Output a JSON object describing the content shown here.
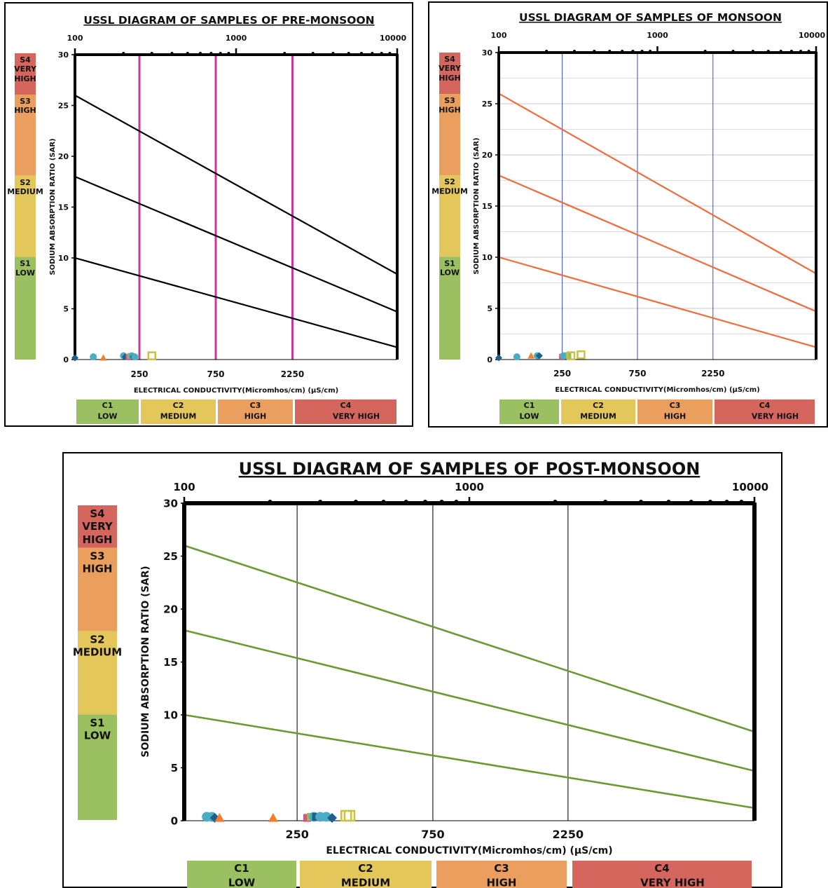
{
  "panels": [
    {
      "id": "pre",
      "title": "USSL DIAGRAM OF SAMPLES OF PRE-MONSOON",
      "ylabel": "SODIUM ABSORPTION RATIO (SAR)",
      "xlabel": "ELECTRICAL CONDUCTIVITY(Micromhos/cm) (µS/cm)",
      "top_ticks": [
        "100",
        "1000",
        "10000"
      ],
      "y_ticks": [
        "0",
        "5",
        "10",
        "15",
        "20",
        "25",
        "30"
      ],
      "bottom_ticks": [
        "250",
        "750",
        "2250"
      ],
      "s_classes": [
        {
          "code": "S4",
          "name": "VERY HIGH",
          "color": "#d4665e"
        },
        {
          "code": "S3",
          "name": "HIGH",
          "color": "#eb9f5f"
        },
        {
          "code": "S2",
          "name": "MEDIUM",
          "color": "#e3c75a"
        },
        {
          "code": "S1",
          "name": "LOW",
          "color": "#9bc062"
        }
      ],
      "c_classes": [
        {
          "code": "C1",
          "name": "LOW",
          "color": "#9bc062"
        },
        {
          "code": "C2",
          "name": "MEDIUM",
          "color": "#e3c75a"
        },
        {
          "code": "C3",
          "name": "HIGH",
          "color": "#eb9f5f"
        },
        {
          "code": "C4",
          "name": "VERY HIGH",
          "color": "#d4665e"
        }
      ],
      "line_color": "#000000",
      "divider_color": "#c8399e"
    },
    {
      "id": "mon",
      "title": "USSL DIAGRAM OF SAMPLES OF MONSOON",
      "ylabel": "SODIUM ABSORPTION RATIO (SAR)",
      "xlabel": "ELECTRICAL CONDUCTIVITY(Micromhos/cm) (µS/cm)",
      "top_ticks": [
        "100",
        "1000",
        "10000"
      ],
      "y_ticks": [
        "0",
        "5",
        "10",
        "15",
        "20",
        "25",
        "30"
      ],
      "bottom_ticks": [
        "250",
        "750",
        "2250"
      ],
      "s_classes": [
        {
          "code": "S4",
          "name": "VERY HIGH",
          "color": "#d4665e"
        },
        {
          "code": "S3",
          "name": "HIGH",
          "color": "#eb9f5f"
        },
        {
          "code": "S2",
          "name": "MEDIUM",
          "color": "#e3c75a"
        },
        {
          "code": "S1",
          "name": "LOW",
          "color": "#9bc062"
        }
      ],
      "c_classes": [
        {
          "code": "C1",
          "name": "LOW",
          "color": "#9bc062"
        },
        {
          "code": "C2",
          "name": "MEDIUM",
          "color": "#e3c75a"
        },
        {
          "code": "C3",
          "name": "HIGH",
          "color": "#eb9f5f"
        },
        {
          "code": "C4",
          "name": "VERY HIGH",
          "color": "#d4665e"
        }
      ],
      "line_color": "#f26b3a",
      "divider_color": "#3b48e0"
    },
    {
      "id": "post",
      "title": "USSL DIAGRAM OF SAMPLES OF POST-MONSOON",
      "ylabel": "SODIUM ABSORPTION RATIO (SAR)",
      "xlabel": "ELECTRICAL CONDUCTIVITY(Micromhos/cm) (µS/cm)",
      "top_ticks": [
        "100",
        "1000",
        "10000"
      ],
      "y_ticks": [
        "0",
        "5",
        "10",
        "15",
        "20",
        "25",
        "30"
      ],
      "bottom_ticks": [
        "250",
        "750",
        "2250"
      ],
      "s_classes": [
        {
          "code": "S4",
          "name": "VERY HIGH",
          "color": "#d4665e"
        },
        {
          "code": "S3",
          "name": "HIGH",
          "color": "#eb9f5f"
        },
        {
          "code": "S2",
          "name": "MEDIUM",
          "color": "#e3c75a"
        },
        {
          "code": "S1",
          "name": "LOW",
          "color": "#9bc062"
        }
      ],
      "c_classes": [
        {
          "code": "C1",
          "name": "LOW",
          "color": "#9bc062"
        },
        {
          "code": "C2",
          "name": "MEDIUM",
          "color": "#e3c75a"
        },
        {
          "code": "C3",
          "name": "HIGH",
          "color": "#eb9f5f"
        },
        {
          "code": "C4",
          "name": "VERY HIGH",
          "color": "#d4665e"
        }
      ],
      "line_color": "#6a9a33",
      "divider_color": "#333333"
    }
  ],
  "chart_data": [
    {
      "type": "scatter",
      "title": "USSL DIAGRAM OF SAMPLES OF PRE-MONSOON",
      "xlabel": "ELECTRICAL CONDUCTIVITY(Micromhos/cm) (µS/cm)",
      "ylabel": "SODIUM ABSORPTION RATIO (SAR)",
      "x_scale": "log",
      "xlim": [
        100,
        10000
      ],
      "ylim": [
        0,
        30
      ],
      "class_boundaries_ec": [
        250,
        750,
        2250
      ],
      "sar_boundary_lines": [
        {
          "x": [
            100,
            10000
          ],
          "y": [
            26,
            8.4
          ]
        },
        {
          "x": [
            100,
            10000
          ],
          "y": [
            18,
            4.7
          ]
        },
        {
          "x": [
            100,
            10000
          ],
          "y": [
            10,
            1.2
          ]
        }
      ],
      "samples": [
        {
          "x": 100,
          "y": 0.1,
          "marker": "diamond",
          "color": "#1f5f8b"
        },
        {
          "x": 130,
          "y": 0.2,
          "marker": "circle",
          "color": "#4bacc6"
        },
        {
          "x": 150,
          "y": 0.1,
          "marker": "triangle",
          "color": "#f07f2e"
        },
        {
          "x": 200,
          "y": 0.3,
          "marker": "circle",
          "color": "#4bacc6"
        },
        {
          "x": 205,
          "y": 0.2,
          "marker": "diamond",
          "color": "#1f5f8b"
        },
        {
          "x": 215,
          "y": 0.2,
          "marker": "square",
          "color": "#e84c8b"
        },
        {
          "x": 220,
          "y": 0.3,
          "marker": "square",
          "color": "#9bbb59"
        },
        {
          "x": 225,
          "y": 0.3,
          "marker": "circle",
          "color": "#4bacc6"
        },
        {
          "x": 230,
          "y": 0.2,
          "marker": "diamond",
          "color": "#1f5f8b"
        },
        {
          "x": 235,
          "y": 0.2,
          "marker": "circle",
          "color": "#4bacc6"
        },
        {
          "x": 300,
          "y": 0.3,
          "marker": "open-square",
          "color": "#c9c244"
        }
      ]
    },
    {
      "type": "scatter",
      "title": "USSL DIAGRAM OF SAMPLES OF MONSOON",
      "xlabel": "ELECTRICAL CONDUCTIVITY(Micromhos/cm) (µS/cm)",
      "ylabel": "SODIUM ABSORPTION RATIO (SAR)",
      "x_scale": "log",
      "xlim": [
        100,
        10000
      ],
      "ylim": [
        0,
        30
      ],
      "class_boundaries_ec": [
        250,
        750,
        2250
      ],
      "sar_boundary_lines": [
        {
          "x": [
            100,
            10000
          ],
          "y": [
            26,
            8.4
          ]
        },
        {
          "x": [
            100,
            10000
          ],
          "y": [
            18,
            4.7
          ]
        },
        {
          "x": [
            100,
            10000
          ],
          "y": [
            10,
            1.2
          ]
        }
      ],
      "samples": [
        {
          "x": 100,
          "y": 0.1,
          "marker": "diamond",
          "color": "#1f5f8b"
        },
        {
          "x": 130,
          "y": 0.2,
          "marker": "circle",
          "color": "#4bacc6"
        },
        {
          "x": 160,
          "y": 0.3,
          "marker": "triangle",
          "color": "#f07f2e"
        },
        {
          "x": 175,
          "y": 0.3,
          "marker": "circle",
          "color": "#4bacc6"
        },
        {
          "x": 180,
          "y": 0.3,
          "marker": "diamond",
          "color": "#1f5f8b"
        },
        {
          "x": 250,
          "y": 0.2,
          "marker": "square",
          "color": "#e84c8b"
        },
        {
          "x": 255,
          "y": 0.3,
          "marker": "circle",
          "color": "#4bacc6"
        },
        {
          "x": 265,
          "y": 0.3,
          "marker": "circle",
          "color": "#4bacc6"
        },
        {
          "x": 275,
          "y": 0.3,
          "marker": "square",
          "color": "#9bbb59"
        },
        {
          "x": 285,
          "y": 0.3,
          "marker": "open-square",
          "color": "#c9c244"
        },
        {
          "x": 330,
          "y": 0.4,
          "marker": "open-square",
          "color": "#c9c244"
        }
      ]
    },
    {
      "type": "scatter",
      "title": "USSL DIAGRAM OF SAMPLES OF POST-MONSOON",
      "xlabel": "ELECTRICAL CONDUCTIVITY(Micromhos/cm) (µS/cm)",
      "ylabel": "SODIUM ABSORPTION RATIO (SAR)",
      "x_scale": "log",
      "xlim": [
        100,
        10000
      ],
      "ylim": [
        0,
        30
      ],
      "class_boundaries_ec": [
        250,
        750,
        2250
      ],
      "sar_boundary_lines": [
        {
          "x": [
            100,
            10000
          ],
          "y": [
            26,
            8.4
          ]
        },
        {
          "x": [
            100,
            10000
          ],
          "y": [
            18,
            4.7
          ]
        },
        {
          "x": [
            100,
            10000
          ],
          "y": [
            10,
            1.2
          ]
        }
      ],
      "samples": [
        {
          "x": 120,
          "y": 0.3,
          "marker": "circle",
          "color": "#4bacc6"
        },
        {
          "x": 125,
          "y": 0.3,
          "marker": "circle",
          "color": "#4bacc6"
        },
        {
          "x": 128,
          "y": 0.2,
          "marker": "diamond",
          "color": "#1f5f8b"
        },
        {
          "x": 133,
          "y": 0.2,
          "marker": "triangle",
          "color": "#f07f2e"
        },
        {
          "x": 205,
          "y": 0.2,
          "marker": "triangle",
          "color": "#f07f2e"
        },
        {
          "x": 270,
          "y": 0.2,
          "marker": "square",
          "color": "#e84c8b"
        },
        {
          "x": 278,
          "y": 0.3,
          "marker": "square",
          "color": "#9bbb59"
        },
        {
          "x": 285,
          "y": 0.3,
          "marker": "circle",
          "color": "#4bacc6"
        },
        {
          "x": 290,
          "y": 0.3,
          "marker": "square",
          "color": "#1f5f8b"
        },
        {
          "x": 300,
          "y": 0.3,
          "marker": "circle",
          "color": "#4bacc6"
        },
        {
          "x": 315,
          "y": 0.3,
          "marker": "circle",
          "color": "#4bacc6"
        },
        {
          "x": 330,
          "y": 0.2,
          "marker": "diamond",
          "color": "#1f5f8b"
        },
        {
          "x": 370,
          "y": 0.4,
          "marker": "open-square",
          "color": "#c9c244"
        },
        {
          "x": 380,
          "y": 0.4,
          "marker": "open-square",
          "color": "#c9c244"
        }
      ]
    }
  ]
}
